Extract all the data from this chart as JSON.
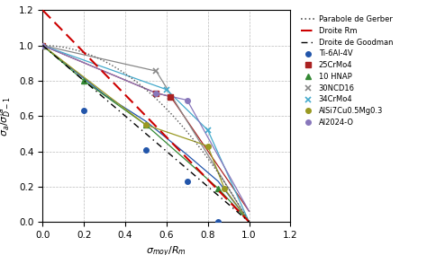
{
  "xlabel": "$\\sigma_{moy}/R_m$",
  "ylabel": "$\\sigma_a/\\sigma_{D-1}^{ta}$",
  "xlim": [
    0,
    1.2
  ],
  "ylim": [
    0,
    1.2
  ],
  "xticks": [
    0,
    0.2,
    0.4,
    0.6,
    0.8,
    1.0,
    1.2
  ],
  "yticks": [
    0,
    0.2,
    0.4,
    0.6,
    0.8,
    1.0,
    1.2
  ],
  "gerber_color": "#555555",
  "droite_rm_color": "#cc0000",
  "goodman_color": "#000000",
  "materials": {
    "Ti-6Al-4V": {
      "color": "#2255aa",
      "marker": "o",
      "markersize": 4,
      "line_points_x": [
        0.0,
        0.3,
        0.5,
        0.7,
        0.85,
        1.0
      ],
      "line_points_y": [
        1.0,
        0.72,
        0.57,
        0.38,
        0.23,
        0.0
      ],
      "scatter_x": [
        0.0,
        0.2,
        0.5,
        0.7,
        0.85
      ],
      "scatter_y": [
        1.0,
        0.63,
        0.41,
        0.23,
        0.0
      ]
    },
    "25CrMo4": {
      "color": "#aa2222",
      "marker": "s",
      "markersize": 4,
      "line_points_x": [
        0.0,
        0.55,
        0.62,
        1.0
      ],
      "line_points_y": [
        1.0,
        0.73,
        0.71,
        0.06
      ],
      "scatter_x": [
        0.0,
        0.55,
        0.62
      ],
      "scatter_y": [
        1.0,
        0.73,
        0.71
      ]
    },
    "10 HNAP": {
      "color": "#338833",
      "marker": "^",
      "markersize": 4,
      "line_points_x": [
        0.0,
        0.2,
        0.5,
        0.85,
        1.0
      ],
      "line_points_y": [
        1.0,
        0.8,
        0.55,
        0.19,
        0.0
      ],
      "scatter_x": [
        0.0,
        0.2,
        0.5,
        0.85
      ],
      "scatter_y": [
        1.0,
        0.8,
        0.55,
        0.19
      ]
    },
    "30NCD16": {
      "color": "#888888",
      "marker": "x",
      "markersize": 5,
      "line_points_x": [
        0.0,
        0.55,
        1.0
      ],
      "line_points_y": [
        1.0,
        0.855,
        0.0
      ],
      "scatter_x": [
        0.55
      ],
      "scatter_y": [
        0.855
      ]
    },
    "34CrMo4": {
      "color": "#44aacc",
      "marker": "x",
      "markersize": 5,
      "line_points_x": [
        0.0,
        0.6,
        0.8,
        1.0
      ],
      "line_points_y": [
        1.0,
        0.75,
        0.52,
        0.0
      ],
      "scatter_x": [
        0.6,
        0.8
      ],
      "scatter_y": [
        0.75,
        0.52
      ]
    },
    "AlSi7Cu0.5Mg0.3": {
      "color": "#999922",
      "marker": "o",
      "markersize": 4,
      "line_points_x": [
        0.0,
        0.5,
        0.8,
        0.88,
        1.0
      ],
      "line_points_y": [
        1.0,
        0.55,
        0.43,
        0.19,
        0.0
      ],
      "scatter_x": [
        0.0,
        0.5,
        0.8,
        0.88
      ],
      "scatter_y": [
        1.0,
        0.55,
        0.43,
        0.19
      ]
    },
    "Al2024-O": {
      "color": "#8877bb",
      "marker": "o",
      "markersize": 4,
      "line_points_x": [
        0.0,
        0.55,
        0.7,
        1.0
      ],
      "line_points_y": [
        1.0,
        0.73,
        0.69,
        0.06
      ],
      "scatter_x": [
        0.0,
        0.55,
        0.7
      ],
      "scatter_y": [
        1.0,
        0.73,
        0.69
      ]
    }
  }
}
